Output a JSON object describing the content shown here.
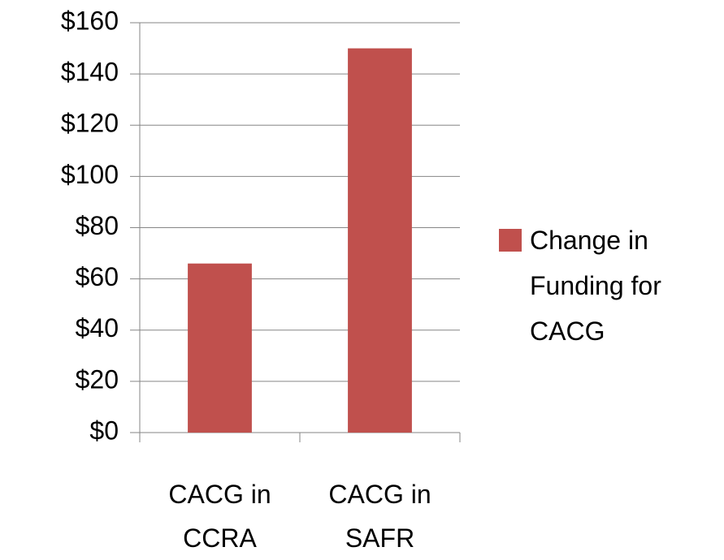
{
  "chart_data": {
    "type": "bar",
    "categories": [
      "CACG in CCRA",
      "CACG in SAFR"
    ],
    "series": [
      {
        "name": "Change in Funding for CACG",
        "color": "#c0504d",
        "values": [
          66,
          150
        ]
      }
    ],
    "ylim": [
      0,
      160
    ],
    "yticks": [
      {
        "value": 0,
        "label": "$0"
      },
      {
        "value": 20,
        "label": "$20"
      },
      {
        "value": 40,
        "label": "$40"
      },
      {
        "value": 60,
        "label": "$60"
      },
      {
        "value": 80,
        "label": "$80"
      },
      {
        "value": 100,
        "label": "$100"
      },
      {
        "value": 120,
        "label": "$120"
      },
      {
        "value": 140,
        "label": "$140"
      },
      {
        "value": 160,
        "label": "$160"
      }
    ],
    "grid": true,
    "legend": "right"
  }
}
